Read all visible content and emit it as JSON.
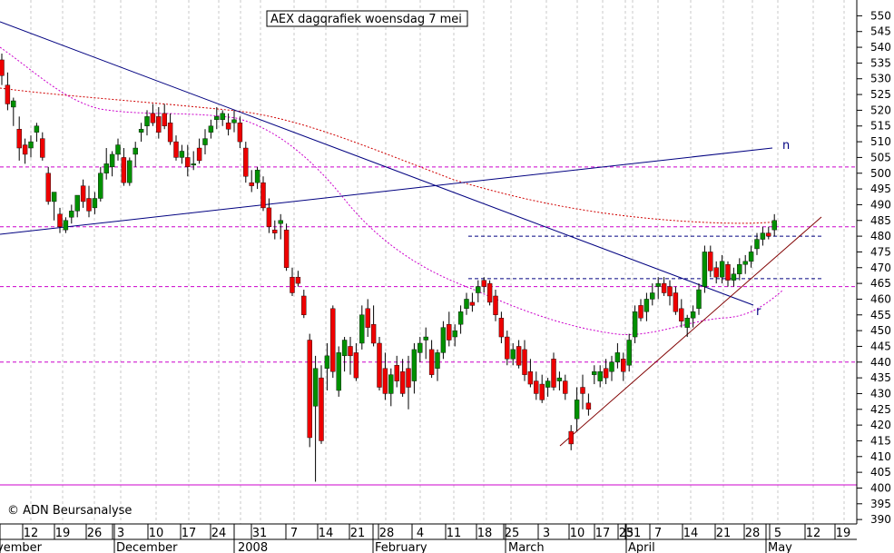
{
  "chart_data": {
    "type": "candlestick",
    "title": "AEX dagqrafiek woensdag 7 mei",
    "copyright": "© ADN Beursanalyse",
    "y_axis": {
      "ticks": [
        390,
        395,
        400,
        405,
        410,
        415,
        420,
        425,
        430,
        435,
        440,
        445,
        450,
        455,
        460,
        465,
        470,
        475,
        480,
        485,
        490,
        495,
        500,
        505,
        510,
        515,
        520,
        525,
        530,
        535,
        540,
        545,
        550
      ],
      "range": [
        386,
        553
      ],
      "position": "right"
    },
    "x_axis": {
      "day_ticks": [
        "12",
        "19",
        "26",
        "3",
        "10",
        "17",
        "24",
        "31",
        "7",
        "14",
        "21",
        "28",
        "4",
        "11",
        "18",
        "25",
        "3",
        "10",
        "17",
        "25",
        "31",
        "7",
        "14",
        "21",
        "28",
        "5",
        "12",
        "19"
      ],
      "month_labels": [
        "vember",
        "December",
        "2008",
        "February",
        "March",
        "April",
        "May"
      ]
    },
    "horizontal_levels": [
      {
        "value": 502,
        "color": "#cc00cc",
        "style": "dashed"
      },
      {
        "value": 483,
        "color": "#cc00cc",
        "style": "dashed"
      },
      {
        "value": 480,
        "color": "#000080",
        "style": "dashed"
      },
      {
        "value": 466.5,
        "color": "#000080",
        "style": "dashed"
      },
      {
        "value": 464,
        "color": "#cc00cc",
        "style": "dashed"
      },
      {
        "value": 440,
        "color": "#cc00cc",
        "style": "dashed"
      },
      {
        "value": 401,
        "color": "#cc00cc",
        "style": "solid"
      }
    ],
    "annotations": [
      {
        "label": "n",
        "color": "#000080"
      },
      {
        "label": "r",
        "color": "#000080"
      }
    ],
    "candles": [
      {
        "o": 536,
        "h": 538,
        "l": 528,
        "c": 531
      },
      {
        "o": 528,
        "h": 532,
        "l": 520,
        "c": 522
      },
      {
        "o": 521,
        "h": 524,
        "l": 515,
        "c": 523
      },
      {
        "o": 514,
        "h": 518,
        "l": 504,
        "c": 508
      },
      {
        "o": 509,
        "h": 511,
        "l": 503,
        "c": 506
      },
      {
        "o": 508,
        "h": 512,
        "l": 505,
        "c": 510
      },
      {
        "o": 513,
        "h": 516,
        "l": 510,
        "c": 515
      },
      {
        "o": 511,
        "h": 513,
        "l": 504,
        "c": 505
      },
      {
        "o": 500,
        "h": 502,
        "l": 490,
        "c": 491
      },
      {
        "o": 491,
        "h": 494,
        "l": 485,
        "c": 494
      },
      {
        "o": 487,
        "h": 489,
        "l": 481,
        "c": 483
      },
      {
        "o": 482,
        "h": 486,
        "l": 481,
        "c": 485
      },
      {
        "o": 486,
        "h": 490,
        "l": 484,
        "c": 488
      },
      {
        "o": 488,
        "h": 493,
        "l": 486,
        "c": 493
      },
      {
        "o": 496,
        "h": 498,
        "l": 489,
        "c": 491
      },
      {
        "o": 492,
        "h": 496,
        "l": 486,
        "c": 488
      },
      {
        "o": 489,
        "h": 494,
        "l": 487,
        "c": 492
      },
      {
        "o": 492,
        "h": 502,
        "l": 491,
        "c": 500
      },
      {
        "o": 500,
        "h": 508,
        "l": 498,
        "c": 503
      },
      {
        "o": 502,
        "h": 507,
        "l": 499,
        "c": 506
      },
      {
        "o": 506,
        "h": 511,
        "l": 504,
        "c": 509
      },
      {
        "o": 505,
        "h": 508,
        "l": 496,
        "c": 497
      },
      {
        "o": 497,
        "h": 505,
        "l": 496,
        "c": 504
      },
      {
        "o": 506,
        "h": 510,
        "l": 502,
        "c": 508
      },
      {
        "o": 513,
        "h": 516,
        "l": 510,
        "c": 514
      },
      {
        "o": 515,
        "h": 520,
        "l": 512,
        "c": 518
      },
      {
        "o": 519,
        "h": 522,
        "l": 515,
        "c": 516
      },
      {
        "o": 518,
        "h": 521,
        "l": 511,
        "c": 513
      },
      {
        "o": 519,
        "h": 522,
        "l": 514,
        "c": 515
      },
      {
        "o": 516,
        "h": 519,
        "l": 509,
        "c": 510
      },
      {
        "o": 510,
        "h": 512,
        "l": 504,
        "c": 505
      },
      {
        "o": 505,
        "h": 509,
        "l": 503,
        "c": 507
      },
      {
        "o": 505,
        "h": 509,
        "l": 499,
        "c": 502
      },
      {
        "o": 503,
        "h": 507,
        "l": 501,
        "c": 503
      },
      {
        "o": 508,
        "h": 511,
        "l": 503,
        "c": 504
      },
      {
        "o": 509,
        "h": 514,
        "l": 506,
        "c": 511
      },
      {
        "o": 513,
        "h": 517,
        "l": 511,
        "c": 515
      },
      {
        "o": 517,
        "h": 521,
        "l": 514,
        "c": 518
      },
      {
        "o": 517,
        "h": 520,
        "l": 515,
        "c": 519
      },
      {
        "o": 516,
        "h": 519,
        "l": 512,
        "c": 514
      },
      {
        "o": 516,
        "h": 520,
        "l": 513,
        "c": 517
      },
      {
        "o": 516,
        "h": 518,
        "l": 508,
        "c": 510
      },
      {
        "o": 508,
        "h": 510,
        "l": 497,
        "c": 499
      },
      {
        "o": 497,
        "h": 501,
        "l": 494,
        "c": 496
      },
      {
        "o": 497,
        "h": 502,
        "l": 495,
        "c": 501
      },
      {
        "o": 497,
        "h": 499,
        "l": 488,
        "c": 489
      },
      {
        "o": 489,
        "h": 492,
        "l": 481,
        "c": 483
      },
      {
        "o": 482,
        "h": 485,
        "l": 479,
        "c": 481
      },
      {
        "o": 484,
        "h": 487,
        "l": 479,
        "c": 485
      },
      {
        "o": 482,
        "h": 484,
        "l": 469,
        "c": 470
      },
      {
        "o": 467,
        "h": 470,
        "l": 461,
        "c": 462
      },
      {
        "o": 467,
        "h": 469,
        "l": 464,
        "c": 465
      },
      {
        "o": 461,
        "h": 463,
        "l": 454,
        "c": 455
      },
      {
        "o": 447,
        "h": 449,
        "l": 413,
        "c": 416
      },
      {
        "o": 426,
        "h": 442,
        "l": 402,
        "c": 438
      },
      {
        "o": 435,
        "h": 439,
        "l": 414,
        "c": 415
      },
      {
        "o": 438,
        "h": 446,
        "l": 431,
        "c": 442
      },
      {
        "o": 457,
        "h": 458,
        "l": 435,
        "c": 437
      },
      {
        "o": 431,
        "h": 445,
        "l": 429,
        "c": 443
      },
      {
        "o": 442,
        "h": 448,
        "l": 437,
        "c": 447
      },
      {
        "o": 445,
        "h": 448,
        "l": 436,
        "c": 442
      },
      {
        "o": 443,
        "h": 446,
        "l": 434,
        "c": 435
      },
      {
        "o": 446,
        "h": 458,
        "l": 444,
        "c": 455
      },
      {
        "o": 457,
        "h": 460,
        "l": 448,
        "c": 451
      },
      {
        "o": 452,
        "h": 458,
        "l": 445,
        "c": 446
      },
      {
        "o": 446,
        "h": 448,
        "l": 431,
        "c": 432
      },
      {
        "o": 438,
        "h": 443,
        "l": 428,
        "c": 430
      },
      {
        "o": 430,
        "h": 438,
        "l": 426,
        "c": 436
      },
      {
        "o": 439,
        "h": 442,
        "l": 432,
        "c": 434
      },
      {
        "o": 437,
        "h": 441,
        "l": 429,
        "c": 430
      },
      {
        "o": 438,
        "h": 442,
        "l": 425,
        "c": 432
      },
      {
        "o": 434,
        "h": 446,
        "l": 430,
        "c": 444
      },
      {
        "o": 443,
        "h": 448,
        "l": 440,
        "c": 446
      },
      {
        "o": 447,
        "h": 451,
        "l": 441,
        "c": 448
      },
      {
        "o": 444,
        "h": 447,
        "l": 435,
        "c": 436
      },
      {
        "o": 438,
        "h": 444,
        "l": 434,
        "c": 443
      },
      {
        "o": 443,
        "h": 453,
        "l": 441,
        "c": 451
      },
      {
        "o": 452,
        "h": 456,
        "l": 445,
        "c": 447
      },
      {
        "o": 448,
        "h": 452,
        "l": 445,
        "c": 450
      },
      {
        "o": 452,
        "h": 458,
        "l": 449,
        "c": 456
      },
      {
        "o": 457,
        "h": 462,
        "l": 455,
        "c": 460
      },
      {
        "o": 459,
        "h": 462,
        "l": 456,
        "c": 458
      },
      {
        "o": 462,
        "h": 466,
        "l": 459,
        "c": 464
      },
      {
        "o": 466,
        "h": 467,
        "l": 462,
        "c": 464
      },
      {
        "o": 465,
        "h": 466,
        "l": 458,
        "c": 459
      },
      {
        "o": 461,
        "h": 463,
        "l": 453,
        "c": 455
      },
      {
        "o": 454,
        "h": 456,
        "l": 446,
        "c": 448
      },
      {
        "o": 448,
        "h": 450,
        "l": 439,
        "c": 441
      },
      {
        "o": 441,
        "h": 446,
        "l": 439,
        "c": 444
      },
      {
        "o": 445,
        "h": 447,
        "l": 438,
        "c": 439
      },
      {
        "o": 444,
        "h": 447,
        "l": 434,
        "c": 436
      },
      {
        "o": 437,
        "h": 441,
        "l": 432,
        "c": 433
      },
      {
        "o": 434,
        "h": 437,
        "l": 428,
        "c": 430
      },
      {
        "o": 433,
        "h": 436,
        "l": 427,
        "c": 428
      },
      {
        "o": 432,
        "h": 435,
        "l": 429,
        "c": 434
      },
      {
        "o": 441,
        "h": 443,
        "l": 431,
        "c": 432
      },
      {
        "o": 434,
        "h": 437,
        "l": 431,
        "c": 435
      },
      {
        "o": 434,
        "h": 436,
        "l": 428,
        "c": 430
      },
      {
        "o": 418,
        "h": 420,
        "l": 412,
        "c": 414
      },
      {
        "o": 422,
        "h": 432,
        "l": 418,
        "c": 428
      },
      {
        "o": 432,
        "h": 436,
        "l": 425,
        "c": 430
      },
      {
        "o": 427,
        "h": 430,
        "l": 423,
        "c": 425
      },
      {
        "o": 436,
        "h": 439,
        "l": 433,
        "c": 437
      },
      {
        "o": 434,
        "h": 439,
        "l": 432,
        "c": 437
      },
      {
        "o": 438,
        "h": 441,
        "l": 433,
        "c": 435
      },
      {
        "o": 437,
        "h": 442,
        "l": 434,
        "c": 440
      },
      {
        "o": 440,
        "h": 446,
        "l": 438,
        "c": 443
      },
      {
        "o": 441,
        "h": 443,
        "l": 434,
        "c": 437
      },
      {
        "o": 439,
        "h": 449,
        "l": 437,
        "c": 447
      },
      {
        "o": 448,
        "h": 458,
        "l": 446,
        "c": 456
      },
      {
        "o": 458,
        "h": 460,
        "l": 453,
        "c": 454
      },
      {
        "o": 456,
        "h": 462,
        "l": 453,
        "c": 460
      },
      {
        "o": 460,
        "h": 465,
        "l": 458,
        "c": 462
      },
      {
        "o": 464,
        "h": 467,
        "l": 460,
        "c": 465
      },
      {
        "o": 465,
        "h": 467,
        "l": 461,
        "c": 462
      },
      {
        "o": 464,
        "h": 466,
        "l": 458,
        "c": 461
      },
      {
        "o": 462,
        "h": 464,
        "l": 455,
        "c": 456
      },
      {
        "o": 457,
        "h": 460,
        "l": 451,
        "c": 453
      },
      {
        "o": 451,
        "h": 455,
        "l": 448,
        "c": 454
      },
      {
        "o": 454,
        "h": 458,
        "l": 451,
        "c": 456
      },
      {
        "o": 457,
        "h": 465,
        "l": 455,
        "c": 463
      },
      {
        "o": 464,
        "h": 477,
        "l": 462,
        "c": 475
      },
      {
        "o": 475,
        "h": 477,
        "l": 467,
        "c": 469
      },
      {
        "o": 470,
        "h": 472,
        "l": 465,
        "c": 467
      },
      {
        "o": 467,
        "h": 474,
        "l": 465,
        "c": 472
      },
      {
        "o": 471,
        "h": 472,
        "l": 464,
        "c": 466
      },
      {
        "o": 466,
        "h": 470,
        "l": 464,
        "c": 468
      },
      {
        "o": 468,
        "h": 473,
        "l": 466,
        "c": 471
      },
      {
        "o": 471,
        "h": 474,
        "l": 468,
        "c": 472
      },
      {
        "o": 472,
        "h": 477,
        "l": 470,
        "c": 475
      },
      {
        "o": 476,
        "h": 481,
        "l": 474,
        "c": 479
      },
      {
        "o": 479,
        "h": 483,
        "l": 477,
        "c": 481
      },
      {
        "o": 481,
        "h": 483,
        "l": 479,
        "c": 480
      },
      {
        "o": 482,
        "h": 487,
        "l": 480,
        "c": 485
      }
    ]
  }
}
